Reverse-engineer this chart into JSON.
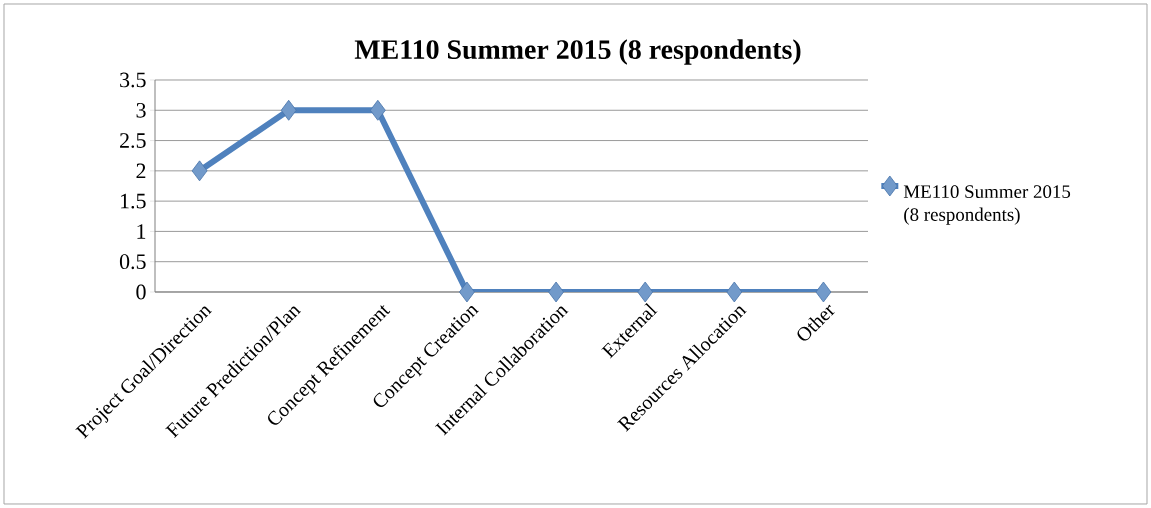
{
  "chart_data": {
    "type": "line",
    "title": "ME110 Summer 2015 (8 respondents)",
    "categories": [
      "Project Goal/Direction",
      "Future Prediction/Plan",
      "Concept Refinement",
      "Concept Creation",
      "Internal Collaboration",
      "External",
      "Resources Allocation",
      "Other"
    ],
    "series": [
      {
        "name": "ME110 Summer 2015 (8 respondents)",
        "color": "#4f81bd",
        "values": [
          2,
          3,
          3,
          0,
          0,
          0,
          0,
          0
        ]
      }
    ],
    "ylim": [
      0,
      3.5
    ],
    "yticks": [
      0,
      0.5,
      1,
      1.5,
      2,
      2.5,
      3,
      3.5
    ],
    "grid": "y",
    "legend": "right",
    "marker": "diamond",
    "line_style": "solid"
  }
}
